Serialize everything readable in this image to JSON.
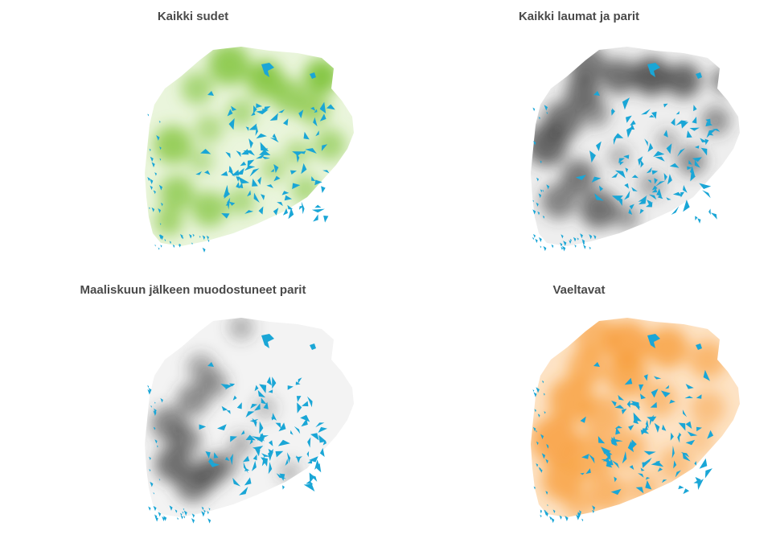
{
  "panels": [
    {
      "title": "Kaikki sudet",
      "color": "#7cc233",
      "base": "#eaf5dc"
    },
    {
      "title": "Kaikki laumat ja parit",
      "color": "#3a3a3a",
      "base": "#eeeeee"
    },
    {
      "title": "Maaliskuun jälkeen muodostuneet parit",
      "color": "#3a3a3a",
      "base": "#f3f3f3"
    },
    {
      "title": "Vaeltavat",
      "color": "#f7962b",
      "base": "#fde3c6"
    }
  ],
  "lake_color": "#1aa6d6"
}
